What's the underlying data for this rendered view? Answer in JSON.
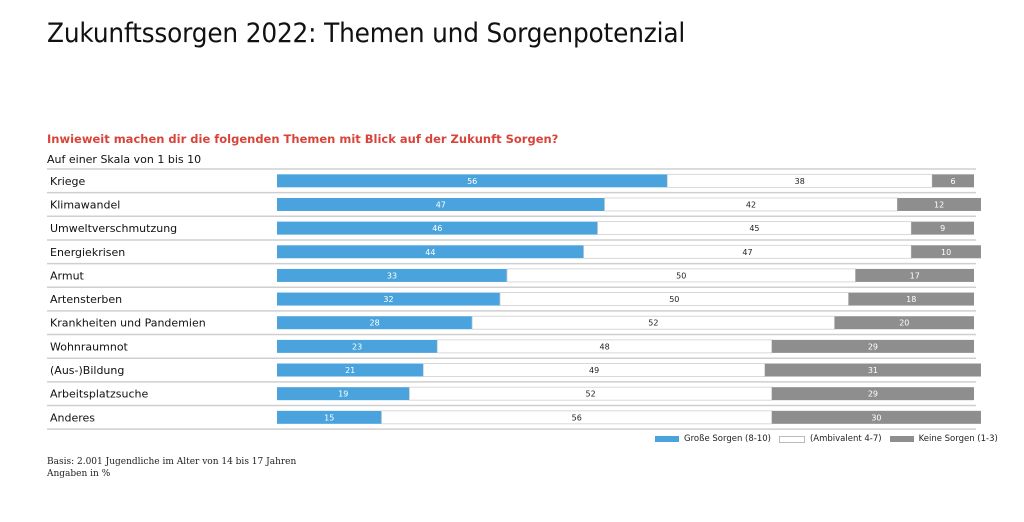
{
  "chart_data": {
    "type": "bar",
    "orientation": "horizontal",
    "stacked": true,
    "title": "Zukunftssorgen 2022: Themen und Sorgenpotenzial",
    "subtitle": "Inwieweit machen dir die folgenden Themen mit Blick auf der Zukunft Sorgen?",
    "scale_note": "Auf einer Skala von 1 bis 10",
    "categories": [
      "Kriege",
      "Klimawandel",
      "Umweltverschmutzung",
      "Energiekrisen",
      "Armut",
      "Artensterben",
      "Krankheiten und Pandemien",
      "Wohnraumnot",
      "(Aus-)Bildung",
      "Arbeitsplatzsuche",
      "Anderes"
    ],
    "series": [
      {
        "name": "Große Sorgen (8-10)",
        "color": "#4aa3dc",
        "label_color": "#ffffff",
        "values": [
          56,
          47,
          46,
          44,
          33,
          32,
          28,
          23,
          21,
          19,
          15
        ]
      },
      {
        "name": "(Ambivalent 4-7)",
        "color": "#ffffff",
        "label_color": "#222222",
        "values": [
          38,
          42,
          45,
          47,
          50,
          50,
          52,
          48,
          49,
          52,
          56
        ]
      },
      {
        "name": "Keine Sorgen (1-3)",
        "color": "#8e8e8e",
        "label_color": "#ffffff",
        "values": [
          6,
          12,
          9,
          10,
          17,
          18,
          20,
          29,
          31,
          29,
          30
        ]
      }
    ],
    "xlabel": "",
    "ylabel": "",
    "xlim": [
      0,
      100
    ],
    "grid": false,
    "legend_position": "bottom-right",
    "footnotes": [
      "Basis: 2.001 Jugendliche im Alter von 14 bis 17 Jahren",
      "Angaben in %"
    ]
  }
}
